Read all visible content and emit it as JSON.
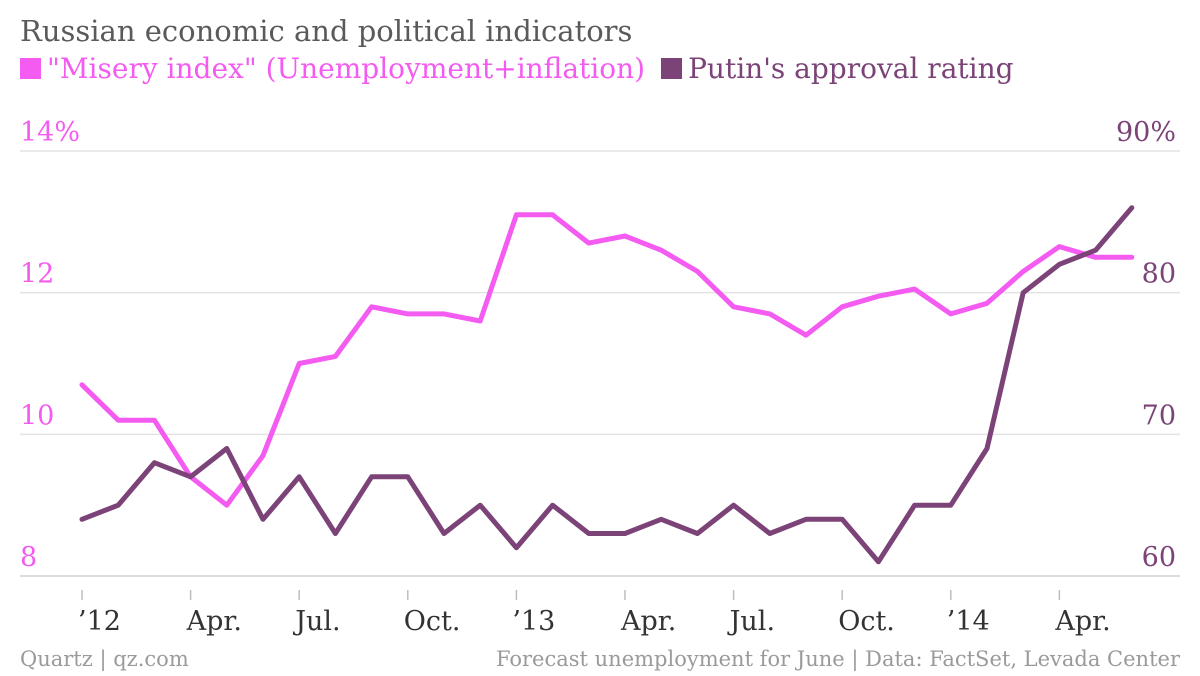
{
  "chart_data": {
    "type": "line",
    "title": "Russian economic and political indicators",
    "x": [
      "2012-01",
      "2012-02",
      "2012-03",
      "2012-04",
      "2012-05",
      "2012-06",
      "2012-07",
      "2012-08",
      "2012-09",
      "2012-10",
      "2012-11",
      "2012-12",
      "2013-01",
      "2013-02",
      "2013-03",
      "2013-04",
      "2013-05",
      "2013-06",
      "2013-07",
      "2013-08",
      "2013-09",
      "2013-10",
      "2013-11",
      "2013-12",
      "2014-01",
      "2014-02",
      "2014-03",
      "2014-04",
      "2014-05",
      "2014-06"
    ],
    "x_tick_labels": [
      {
        "x": "2012-01",
        "label": "’12"
      },
      {
        "x": "2012-04",
        "label": "Apr."
      },
      {
        "x": "2012-07",
        "label": "Jul."
      },
      {
        "x": "2012-10",
        "label": "Oct."
      },
      {
        "x": "2013-01",
        "label": "’13"
      },
      {
        "x": "2013-04",
        "label": "Apr."
      },
      {
        "x": "2013-07",
        "label": "Jul."
      },
      {
        "x": "2013-10",
        "label": "Oct."
      },
      {
        "x": "2014-01",
        "label": "’14"
      },
      {
        "x": "2014-04",
        "label": "Apr."
      }
    ],
    "y_left": {
      "ylim": [
        8,
        14
      ],
      "ticks": [
        8,
        10,
        12,
        14
      ],
      "tick_labels": [
        "8",
        "10",
        "12",
        "14%"
      ]
    },
    "y_right": {
      "ylim": [
        60,
        90
      ],
      "ticks": [
        60,
        70,
        80,
        90
      ],
      "tick_labels": [
        "60",
        "70",
        "80",
        "90%"
      ]
    },
    "grid": true,
    "legend_position": "top-left",
    "series": [
      {
        "name": "\"Misery index\" (Unemployment+inflation)",
        "axis": "left",
        "color": "#f45bf0",
        "values": [
          10.7,
          10.2,
          10.2,
          9.4,
          9.0,
          9.7,
          11.0,
          11.1,
          11.8,
          11.7,
          11.7,
          11.6,
          13.1,
          13.1,
          12.7,
          12.8,
          12.6,
          12.3,
          11.8,
          11.7,
          11.4,
          11.8,
          11.95,
          12.05,
          11.7,
          11.85,
          12.3,
          12.65,
          12.5,
          12.5
        ]
      },
      {
        "name": "Putin's approval rating",
        "axis": "right",
        "color": "#7b4377",
        "values": [
          64,
          65,
          68,
          67,
          69,
          64,
          67,
          63,
          67,
          67,
          63,
          65,
          62,
          65,
          63,
          63,
          64,
          63,
          65,
          63,
          64,
          64,
          61,
          65,
          65,
          69,
          80,
          82,
          83,
          86
        ]
      }
    ]
  },
  "footer": {
    "left": "Quartz | qz.com",
    "right": "Forecast unemployment for June | Data: FactSet, Levada Center"
  }
}
